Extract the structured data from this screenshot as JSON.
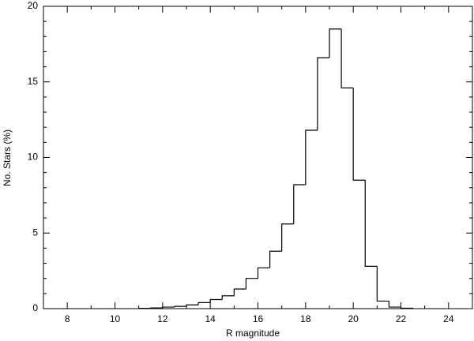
{
  "chart_data": {
    "type": "histogram",
    "xlabel": "R magnitude",
    "ylabel": "No. Stars (%)",
    "bins": [
      11,
      11.5,
      12,
      12.5,
      13,
      13.5,
      14,
      14.5,
      15,
      15.5,
      16,
      16.5,
      17,
      17.5,
      18,
      18.5,
      19,
      19.5,
      20,
      20.5,
      21,
      21.5,
      22,
      22.5
    ],
    "values": [
      0.02,
      0.05,
      0.1,
      0.15,
      0.25,
      0.4,
      0.6,
      0.85,
      1.3,
      2.0,
      2.7,
      3.8,
      5.6,
      8.2,
      11.8,
      16.6,
      18.5,
      14.6,
      8.5,
      2.8,
      0.5,
      0.1,
      0.03
    ],
    "color": "#000000",
    "xlim": [
      7,
      25
    ],
    "xticks": [
      8,
      10,
      12,
      14,
      16,
      18,
      20,
      22,
      24
    ],
    "xminorticks": [
      7,
      9,
      11,
      13,
      15,
      17,
      19,
      21,
      23,
      25
    ],
    "ylim": [
      0,
      20
    ],
    "yticks": [
      0,
      5,
      10,
      15,
      20
    ],
    "yminorticks": [
      1,
      2,
      3,
      4,
      6,
      7,
      8,
      9,
      11,
      12,
      13,
      14,
      16,
      17,
      18,
      19
    ]
  }
}
